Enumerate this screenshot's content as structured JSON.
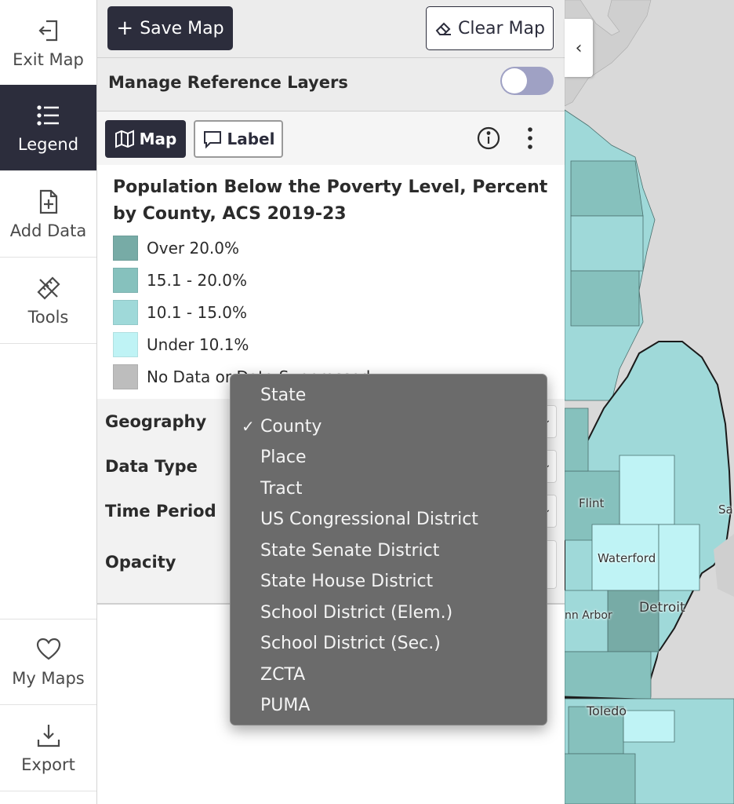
{
  "rail": {
    "items": [
      {
        "label": "Exit Map",
        "icon": "exit-map-icon"
      },
      {
        "label": "Legend",
        "icon": "list-icon",
        "active": true
      },
      {
        "label": "Add Data",
        "icon": "add-file-icon"
      },
      {
        "label": "Tools",
        "icon": "ruler-pencil-icon"
      }
    ],
    "bottom_items": [
      {
        "label": "My Maps",
        "icon": "heart-icon"
      },
      {
        "label": "Export",
        "icon": "download-icon"
      }
    ]
  },
  "toolbar": {
    "save_label": "Save Map",
    "clear_label": "Clear Map"
  },
  "reference_layers": {
    "title": "Manage Reference Layers",
    "toggle_on": false
  },
  "layer_tabs": {
    "map_label": "Map",
    "label_label": "Label"
  },
  "legend": {
    "title": "Population Below the Poverty Level, Percent by County, ACS 2019-23",
    "items": [
      {
        "label": "Over 20.0%",
        "color": "#77aba6"
      },
      {
        "label": "15.1 - 20.0%",
        "color": "#86c1bd"
      },
      {
        "label": "10.1 - 15.0%",
        "color": "#9fd9d9"
      },
      {
        "label": "Under 10.1%",
        "color": "#bff3f5"
      },
      {
        "label": "No Data or Data Suppressed",
        "color": "#bdbdbd"
      }
    ]
  },
  "controls": {
    "geography_label": "Geography",
    "data_type_label": "Data Type",
    "time_period_label": "Time Period",
    "opacity_label": "Opacity"
  },
  "geography_dropdown": {
    "selected": "County",
    "options": [
      "State",
      "County",
      "Place",
      "Tract",
      "US Congressional District",
      "State Senate District",
      "State House District",
      "School District (Elem.)",
      "School District (Sec.)",
      "ZCTA",
      "PUMA"
    ]
  },
  "map": {
    "cities": [
      "Flint",
      "Sa",
      "Waterford",
      "Detroit",
      "nn Arbor",
      "Toledo"
    ]
  },
  "colors": {
    "accent": "#2c2d3c",
    "toggle_track": "#9fa1c4",
    "dropdown_bg": "#6b6b6b"
  }
}
